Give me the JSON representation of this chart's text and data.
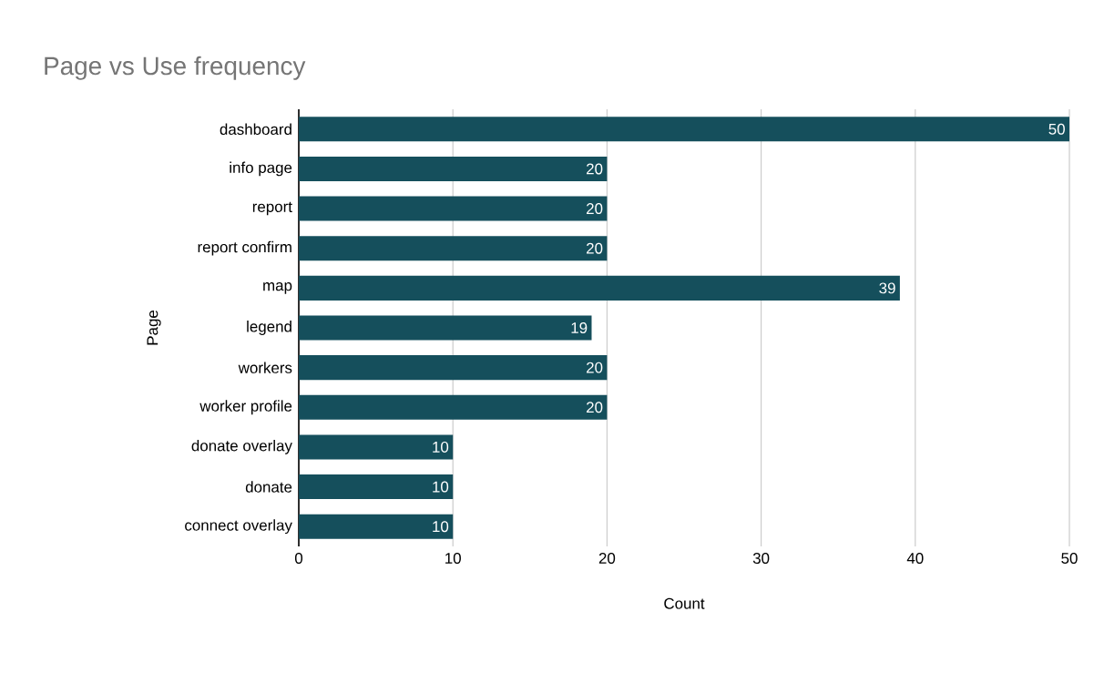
{
  "chart_data": {
    "type": "bar",
    "orientation": "horizontal",
    "title": "Page vs Use frequency",
    "xlabel": "Count",
    "ylabel": "Page",
    "categories": [
      "dashboard",
      "info page",
      "report",
      "report confirm",
      "map",
      "legend",
      "workers",
      "worker profile",
      "donate overlay",
      "donate",
      "connect overlay"
    ],
    "values": [
      50,
      20,
      20,
      20,
      39,
      19,
      20,
      20,
      10,
      10,
      10
    ],
    "color": "#154f5c",
    "xlim": [
      0,
      50
    ],
    "xticks": [
      0,
      10,
      20,
      30,
      40,
      50
    ],
    "grid": "x",
    "data_labels": true
  }
}
